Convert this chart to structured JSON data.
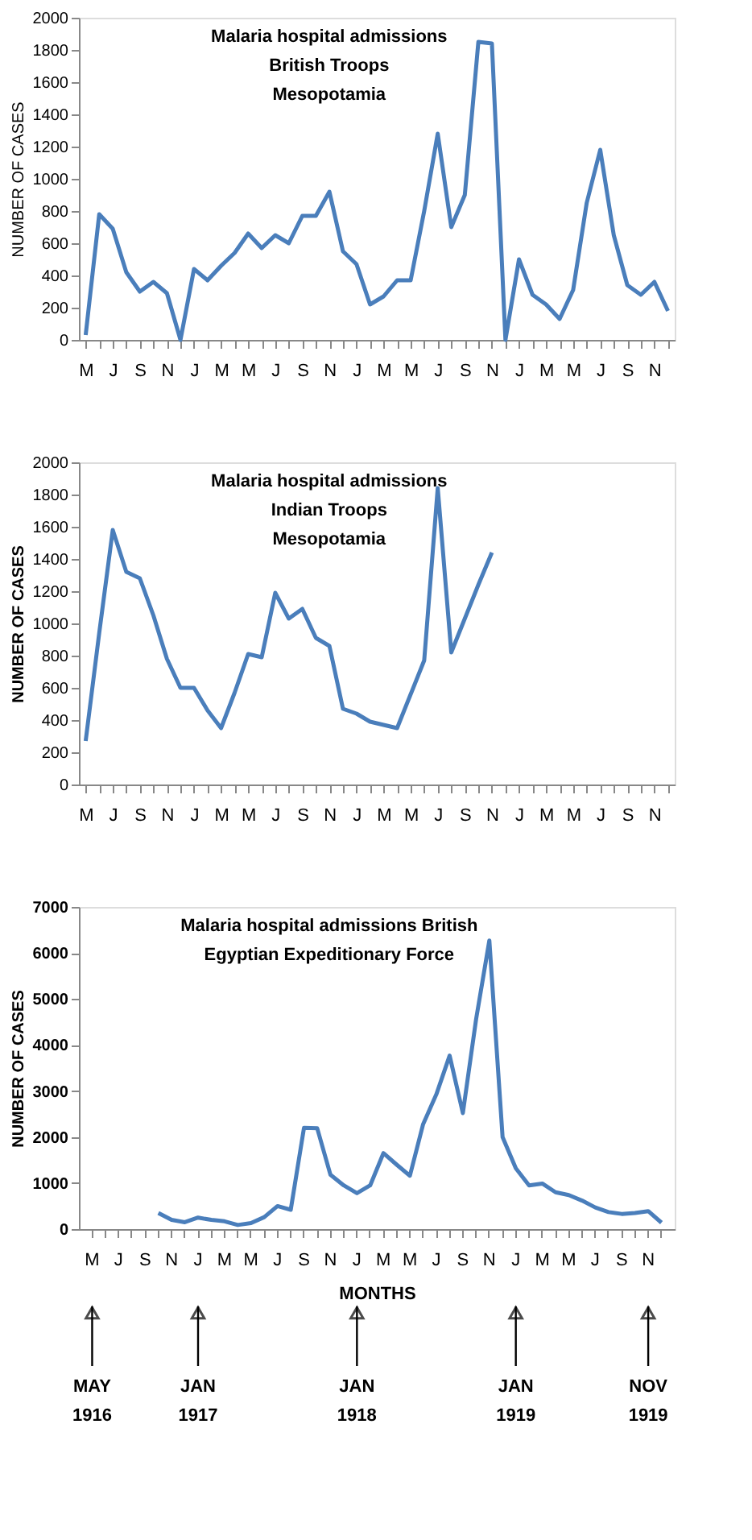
{
  "chart_data": [
    {
      "type": "line",
      "title": "Malaria hospital admissions\nBritish Troops\nMesopotamia",
      "ylabel": "NUMBER OF CASES",
      "categories": [
        "M",
        null,
        "J",
        null,
        "S",
        null,
        "N",
        null,
        "J",
        null,
        "M",
        null,
        "M",
        null,
        "J",
        null,
        "S",
        null,
        "N",
        null,
        "J",
        null,
        "M",
        null,
        "M",
        null,
        "J",
        null,
        "S",
        null,
        "N",
        null,
        "J",
        null,
        "M",
        null,
        "M",
        null,
        "J",
        null,
        "S",
        null,
        "N",
        null
      ],
      "series": [
        {
          "color": "#4a7ebb",
          "values": [
            30,
            780,
            690,
            420,
            300,
            360,
            290,
            0,
            440,
            370,
            460,
            540,
            660,
            570,
            650,
            600,
            770,
            770,
            920,
            550,
            470,
            220,
            270,
            370,
            370,
            800,
            1280,
            700,
            900,
            1850,
            1840,
            0,
            500,
            280,
            220,
            130,
            310,
            850,
            1180,
            650,
            340,
            280,
            360,
            180
          ]
        }
      ],
      "ylim": [
        0,
        2000
      ],
      "yticks": [
        0,
        200,
        400,
        600,
        800,
        1000,
        1200,
        1400,
        1600,
        1800,
        2000
      ],
      "line_style": "solid"
    },
    {
      "type": "line",
      "title": "Malaria hospital admissions\nIndian Troops\nMesopotamia",
      "ylabel": "NUMBER OF CASES",
      "categories": [
        "M",
        null,
        "J",
        null,
        "S",
        null,
        "N",
        null,
        "J",
        null,
        "M",
        null,
        "M",
        null,
        "J",
        null,
        "S",
        null,
        "N",
        null,
        "J",
        null,
        "M",
        null,
        "M",
        null,
        "J",
        null,
        "S",
        null,
        "N",
        null,
        "J",
        null,
        "M",
        null,
        "M",
        null,
        "J",
        null,
        "S",
        null,
        "N",
        null
      ],
      "series": [
        {
          "color": "#4a7ebb",
          "values": [
            270,
            940,
            1580,
            1320,
            1280,
            1050,
            780,
            600,
            600,
            460,
            350,
            570,
            810,
            790,
            1190,
            1030,
            1090,
            910,
            860,
            470,
            440,
            390,
            370,
            350,
            560,
            770,
            1840,
            820,
            1030,
            1240,
            1440,
            null,
            null,
            null,
            null,
            null,
            null,
            null,
            null,
            null,
            null,
            null,
            null,
            null
          ]
        }
      ],
      "ylim": [
        0,
        2000
      ],
      "yticks": [
        0,
        200,
        400,
        600,
        800,
        1000,
        1200,
        1400,
        1600,
        1800,
        2000
      ],
      "line_style": "solid"
    },
    {
      "type": "line",
      "title": "Malaria hospital admissions British\nEgyptian Expeditionary Force",
      "ylabel": "NUMBER OF CASES",
      "xlabel": "MONTHS",
      "categories": [
        "M",
        null,
        "J",
        null,
        "S",
        null,
        "N",
        null,
        "J",
        null,
        "M",
        null,
        "M",
        null,
        "J",
        null,
        "S",
        null,
        "N",
        null,
        "J",
        null,
        "M",
        null,
        "M",
        null,
        "J",
        null,
        "S",
        null,
        "N",
        null,
        "J",
        null,
        "M",
        null,
        "M",
        null,
        "J",
        null,
        "S",
        null,
        "N",
        null
      ],
      "series": [
        {
          "color": "#4a7ebb",
          "values": [
            null,
            null,
            null,
            null,
            null,
            350,
            200,
            150,
            250,
            200,
            170,
            90,
            130,
            260,
            500,
            420,
            2200,
            2190,
            1180,
            950,
            780,
            950,
            1650,
            1400,
            1160,
            2280,
            2930,
            3770,
            2520,
            4560,
            6270,
            2000,
            1320,
            950,
            990,
            800,
            740,
            620,
            470,
            370,
            330,
            350,
            390,
            140
          ]
        }
      ],
      "ylim": [
        0,
        7000
      ],
      "yticks": [
        0,
        1000,
        2000,
        3000,
        4000,
        5000,
        6000,
        7000
      ],
      "line_style": "solid",
      "annotations": [
        "MAY\n1916",
        "JAN\n1917",
        "JAN\n1918",
        "JAN\n1919",
        "NOV\n1919"
      ]
    }
  ]
}
